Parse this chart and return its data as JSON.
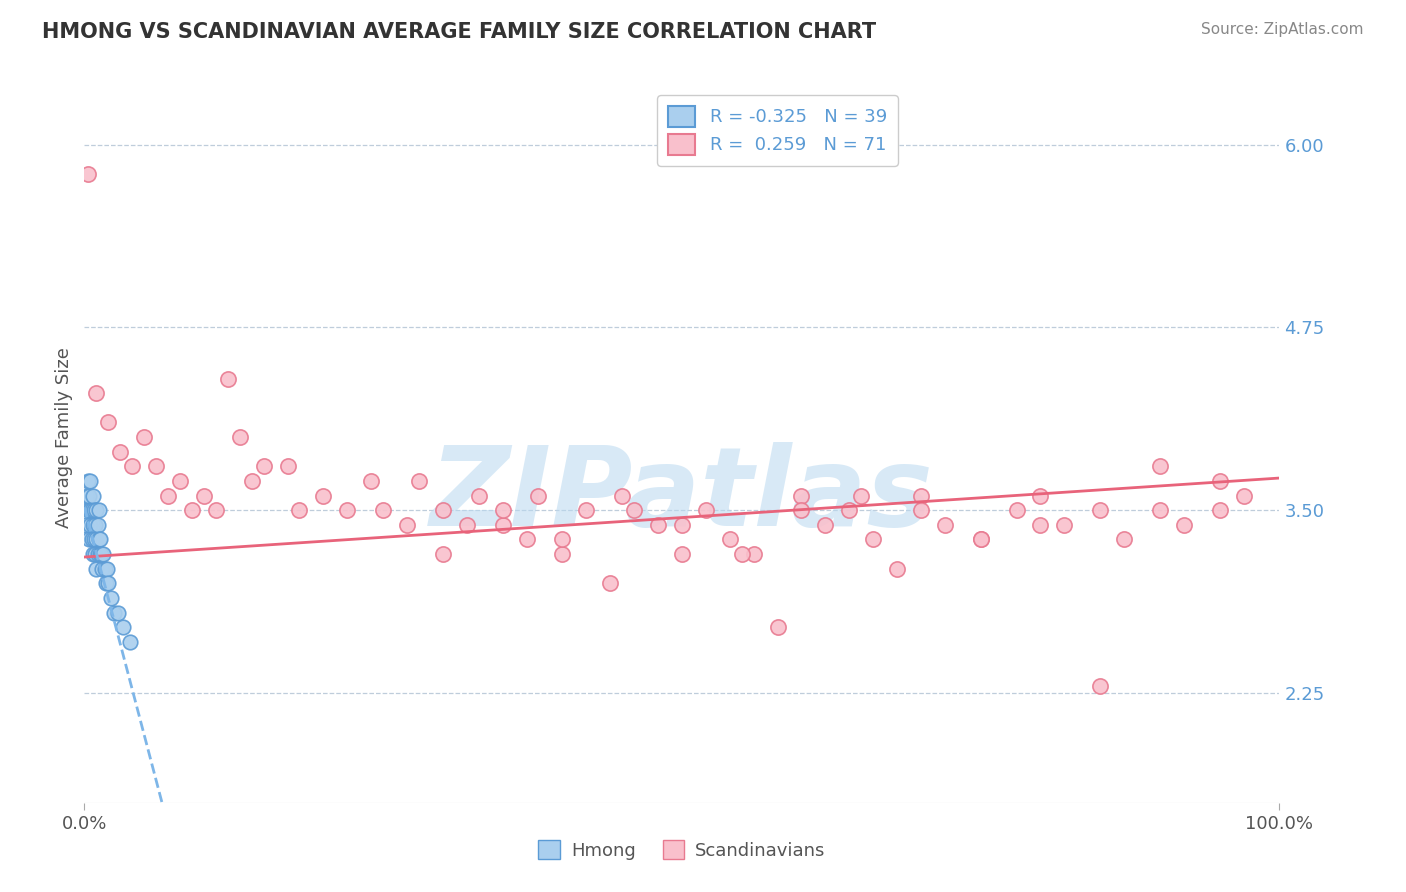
{
  "title": "HMONG VS SCANDINAVIAN AVERAGE FAMILY SIZE CORRELATION CHART",
  "source_text": "Source: ZipAtlas.com",
  "ylabel": "Average Family Size",
  "xlim": [
    0.0,
    1.0
  ],
  "ylim": [
    1.5,
    6.5
  ],
  "yticks": [
    2.25,
    3.5,
    4.75,
    6.0
  ],
  "xticklabels": [
    "0.0%",
    "100.0%"
  ],
  "yticklabel_color": "#5b9bd5",
  "grid_color": "#b8c8d8",
  "background_color": "#ffffff",
  "hmong_color": "#aacfee",
  "hmong_edge_color": "#5b9bd5",
  "scandinavian_color": "#f9c0cc",
  "scandinavian_edge_color": "#e87a90",
  "hmong_line_color": "#7eb6e8",
  "scandinavian_line_color": "#e8637a",
  "legend_R_hmong": "-0.325",
  "legend_N_hmong": "39",
  "legend_R_scan": "0.259",
  "legend_N_scan": "71",
  "watermark": "ZIPatlas",
  "watermark_color": "#b8d8f0",
  "hmong_x": [
    0.001,
    0.002,
    0.003,
    0.003,
    0.004,
    0.004,
    0.005,
    0.005,
    0.005,
    0.006,
    0.006,
    0.007,
    0.007,
    0.007,
    0.008,
    0.008,
    0.009,
    0.009,
    0.01,
    0.01,
    0.01,
    0.011,
    0.011,
    0.012,
    0.012,
    0.013,
    0.013,
    0.014,
    0.015,
    0.016,
    0.017,
    0.018,
    0.019,
    0.02,
    0.022,
    0.025,
    0.028,
    0.032,
    0.038
  ],
  "hmong_y": [
    3.4,
    3.6,
    3.5,
    3.7,
    3.3,
    3.6,
    3.4,
    3.5,
    3.7,
    3.3,
    3.5,
    3.2,
    3.4,
    3.6,
    3.3,
    3.5,
    3.2,
    3.4,
    3.1,
    3.3,
    3.5,
    3.2,
    3.4,
    3.3,
    3.5,
    3.2,
    3.3,
    3.2,
    3.1,
    3.2,
    3.1,
    3.0,
    3.1,
    3.0,
    2.9,
    2.8,
    2.8,
    2.7,
    2.6
  ],
  "scandinavian_x": [
    0.003,
    0.01,
    0.02,
    0.03,
    0.04,
    0.05,
    0.06,
    0.07,
    0.08,
    0.09,
    0.1,
    0.11,
    0.12,
    0.13,
    0.14,
    0.15,
    0.17,
    0.18,
    0.2,
    0.22,
    0.24,
    0.25,
    0.27,
    0.28,
    0.3,
    0.32,
    0.33,
    0.35,
    0.37,
    0.38,
    0.4,
    0.42,
    0.44,
    0.46,
    0.48,
    0.5,
    0.52,
    0.54,
    0.56,
    0.58,
    0.6,
    0.62,
    0.64,
    0.66,
    0.68,
    0.7,
    0.72,
    0.75,
    0.78,
    0.8,
    0.82,
    0.85,
    0.87,
    0.9,
    0.92,
    0.95,
    0.97,
    0.3,
    0.35,
    0.4,
    0.45,
    0.5,
    0.55,
    0.6,
    0.65,
    0.7,
    0.75,
    0.8,
    0.85,
    0.9,
    0.95
  ],
  "scandinavian_y": [
    5.8,
    4.3,
    4.1,
    3.9,
    3.8,
    4.0,
    3.8,
    3.6,
    3.7,
    3.5,
    3.6,
    3.5,
    4.4,
    4.0,
    3.7,
    3.8,
    3.8,
    3.5,
    3.6,
    3.5,
    3.7,
    3.5,
    3.4,
    3.7,
    3.5,
    3.4,
    3.6,
    3.4,
    3.3,
    3.6,
    3.2,
    3.5,
    3.0,
    3.5,
    3.4,
    3.2,
    3.5,
    3.3,
    3.2,
    2.7,
    3.6,
    3.4,
    3.5,
    3.3,
    3.1,
    3.6,
    3.4,
    3.3,
    3.5,
    3.6,
    3.4,
    3.5,
    3.3,
    3.8,
    3.4,
    3.5,
    3.6,
    3.2,
    3.5,
    3.3,
    3.6,
    3.4,
    3.2,
    3.5,
    3.6,
    3.5,
    3.3,
    3.4,
    2.3,
    3.5,
    3.7
  ],
  "scan_trendline_x0": 0.0,
  "scan_trendline_x1": 1.0,
  "scan_trendline_y0": 3.18,
  "scan_trendline_y1": 3.72,
  "hmong_trendline_x0": 0.0,
  "hmong_trendline_x1": 0.065,
  "hmong_trendline_y0": 3.52,
  "hmong_trendline_y1": 1.5
}
